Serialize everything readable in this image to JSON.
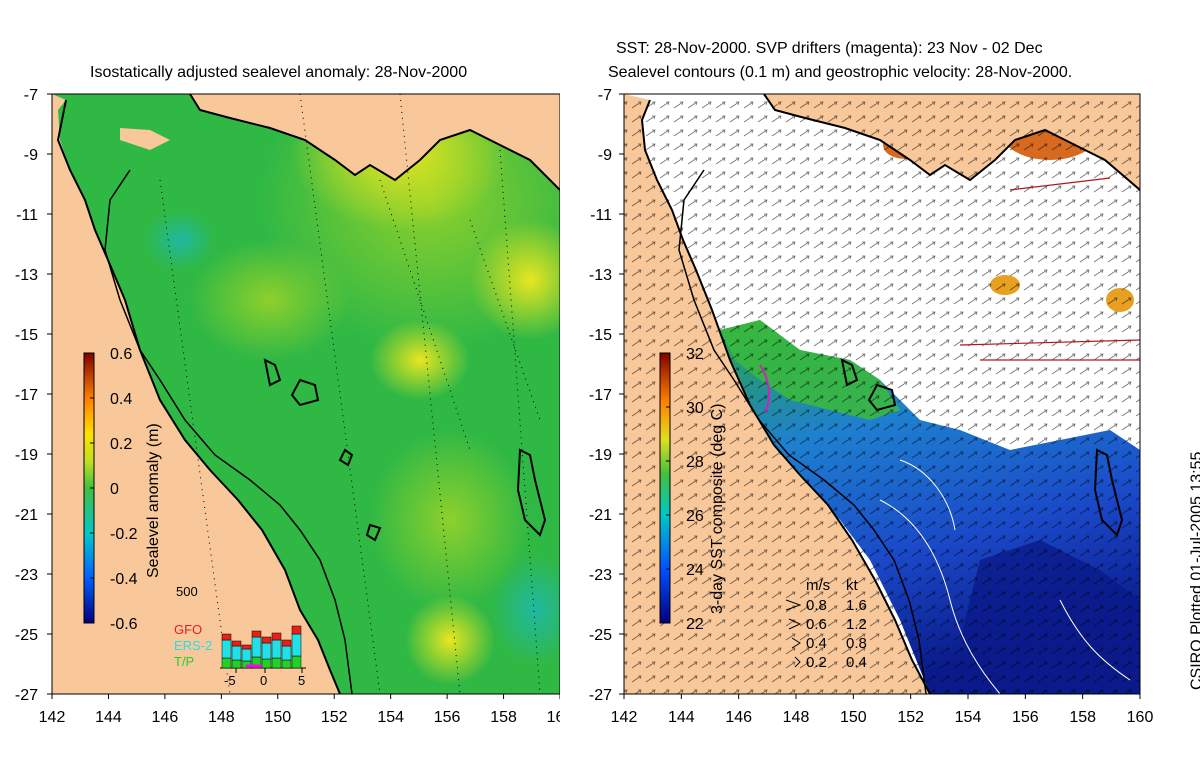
{
  "left_panel": {
    "title": "Isostatically adjusted sealevel anomaly: 28-Nov-2000",
    "colorbar_label": "Sealevel anomaly (m)",
    "colorbar_ticks": [
      "0.6",
      "0.4",
      "0.2",
      "0",
      "-0.2",
      "-0.4",
      "-0.6"
    ],
    "inset": {
      "max_label": "500",
      "legend": [
        {
          "name": "GFO",
          "color": "#e8201a"
        },
        {
          "name": "ERS-2",
          "color": "#22e0e8"
        },
        {
          "name": "T/P",
          "color": "#22d02a"
        }
      ],
      "x_ticks": [
        "-5",
        "0",
        "5"
      ]
    }
  },
  "right_panel": {
    "title_line1": "SST: 28-Nov-2000. SVP drifters (magenta): 23 Nov - 02 Dec",
    "title_line2": "Sealevel contours (0.1 m) and geostrophic velocity: 28-Nov-2000.",
    "colorbar_label": "3-day SST composite (deg C)",
    "colorbar_ticks": [
      "32",
      "30",
      "28",
      "26",
      "24",
      "22"
    ],
    "velocity_legend": {
      "header_ms": "m/s",
      "header_kt": "kt",
      "rows": [
        {
          "ms": "0.8",
          "kt": "1.6"
        },
        {
          "ms": "0.6",
          "kt": "1.2"
        },
        {
          "ms": "0.4",
          "kt": "0.8"
        },
        {
          "ms": "0.2",
          "kt": "0.4"
        }
      ]
    }
  },
  "axes": {
    "lat_ticks": [
      "-7",
      "-9",
      "-11",
      "-13",
      "-15",
      "-17",
      "-19",
      "-21",
      "-23",
      "-25",
      "-27"
    ],
    "lon_ticks": [
      "142",
      "144",
      "146",
      "148",
      "150",
      "152",
      "154",
      "156",
      "158",
      "160"
    ]
  },
  "credit": "CSIRO Plotted 01-Jul-2005 13:55",
  "colors": {
    "land": "#f9c89a",
    "sea_green": "#30b845",
    "sea_light": "#7fcc2c",
    "sea_yellow": "#e5e520",
    "sst_blue": "#1a56d0",
    "sst_dark": "#0a1a8a"
  }
}
